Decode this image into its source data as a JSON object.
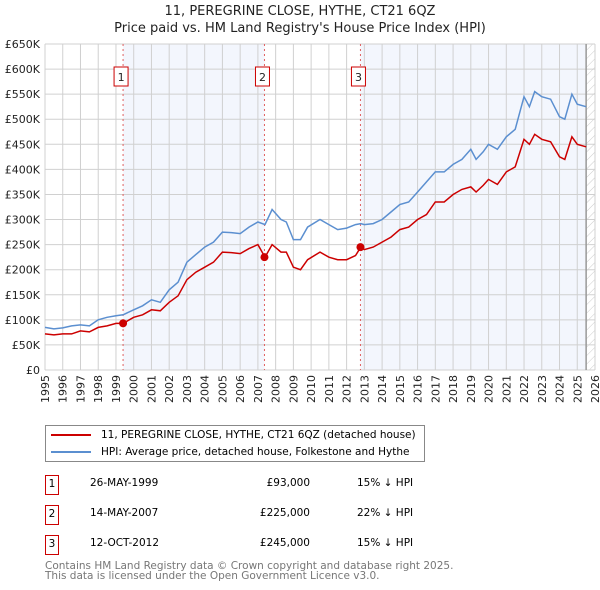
{
  "chart_data": {
    "type": "line",
    "title": "11, PEREGRINE CLOSE, HYTHE, CT21 6QZ",
    "subtitle": "Price paid vs. HM Land Registry's House Price Index (HPI)",
    "xlim": [
      1995,
      2026
    ],
    "ylim": [
      0,
      650000
    ],
    "grid": true,
    "y_ticks": [
      "£0",
      "£50K",
      "£100K",
      "£150K",
      "£200K",
      "£250K",
      "£300K",
      "£350K",
      "£400K",
      "£450K",
      "£500K",
      "£550K",
      "£600K",
      "£650K"
    ],
    "x_ticks": [
      "1995",
      "1996",
      "1997",
      "1998",
      "1999",
      "2000",
      "2001",
      "2002",
      "2003",
      "2004",
      "2005",
      "2006",
      "2007",
      "2008",
      "2009",
      "2010",
      "2011",
      "2012",
      "2013",
      "2014",
      "2015",
      "2016",
      "2017",
      "2018",
      "2019",
      "2020",
      "2021",
      "2022",
      "2023",
      "2024",
      "2025",
      "2026"
    ],
    "series": [
      {
        "name": "11, PEREGRINE CLOSE, HYTHE, CT21 6QZ (detached house)",
        "color": "#cc0000",
        "x": [
          1995,
          1995.5,
          1996,
          1996.5,
          1997,
          1997.5,
          1998,
          1998.5,
          1999,
          1999.4,
          2000,
          2000.5,
          2001,
          2001.5,
          2002,
          2002.5,
          2003,
          2003.5,
          2004,
          2004.5,
          2005,
          2005.5,
          2006,
          2006.5,
          2007,
          2007.4,
          2007.8,
          2008.3,
          2008.6,
          2009,
          2009.4,
          2009.8,
          2010.5,
          2011,
          2011.5,
          2012,
          2012.5,
          2012.8,
          2013,
          2013.5,
          2014,
          2014.5,
          2015,
          2015.5,
          2016,
          2016.5,
          2017,
          2017.5,
          2018,
          2018.5,
          2019,
          2019.3,
          2019.7,
          2020,
          2020.5,
          2021,
          2021.5,
          2022,
          2022.3,
          2022.6,
          2023,
          2023.5,
          2024,
          2024.3,
          2024.7,
          2025,
          2025.5
        ],
        "y": [
          72000,
          70000,
          72000,
          72000,
          78000,
          76000,
          85000,
          88000,
          93000,
          93000,
          105000,
          110000,
          120000,
          118000,
          135000,
          148000,
          180000,
          195000,
          205000,
          215000,
          235000,
          234000,
          232000,
          242000,
          250000,
          225000,
          250000,
          235000,
          235000,
          205000,
          200000,
          220000,
          235000,
          225000,
          220000,
          220000,
          228000,
          245000,
          240000,
          245000,
          255000,
          265000,
          280000,
          285000,
          300000,
          310000,
          335000,
          335000,
          350000,
          360000,
          365000,
          355000,
          368000,
          380000,
          370000,
          395000,
          405000,
          460000,
          450000,
          470000,
          460000,
          455000,
          425000,
          420000,
          465000,
          450000,
          445000
        ]
      },
      {
        "name": "HPI: Average price, detached house, Folkestone and Hythe",
        "color": "#5b8fd0",
        "x": [
          1995,
          1995.5,
          1996,
          1996.5,
          1997,
          1997.5,
          1998,
          1998.5,
          1999,
          1999.4,
          2000,
          2000.5,
          2001,
          2001.5,
          2002,
          2002.5,
          2003,
          2003.5,
          2004,
          2004.5,
          2005,
          2005.5,
          2006,
          2006.5,
          2007,
          2007.4,
          2007.8,
          2008.3,
          2008.6,
          2009,
          2009.4,
          2009.8,
          2010.5,
          2011,
          2011.5,
          2012,
          2012.5,
          2012.8,
          2013,
          2013.5,
          2014,
          2014.5,
          2015,
          2015.5,
          2016,
          2016.5,
          2017,
          2017.5,
          2018,
          2018.5,
          2019,
          2019.3,
          2019.7,
          2020,
          2020.5,
          2021,
          2021.5,
          2022,
          2022.3,
          2022.6,
          2023,
          2023.5,
          2024,
          2024.3,
          2024.7,
          2025,
          2025.5
        ],
        "y": [
          85000,
          82000,
          84000,
          88000,
          90000,
          88000,
          100000,
          105000,
          108000,
          110000,
          120000,
          128000,
          140000,
          135000,
          160000,
          175000,
          215000,
          230000,
          245000,
          255000,
          275000,
          274000,
          272000,
          285000,
          295000,
          290000,
          320000,
          300000,
          295000,
          260000,
          260000,
          285000,
          300000,
          290000,
          280000,
          283000,
          290000,
          292000,
          290000,
          292000,
          300000,
          315000,
          330000,
          335000,
          355000,
          375000,
          395000,
          395000,
          410000,
          420000,
          440000,
          420000,
          435000,
          450000,
          440000,
          465000,
          480000,
          545000,
          525000,
          555000,
          545000,
          540000,
          505000,
          500000,
          550000,
          530000,
          525000
        ]
      }
    ],
    "sales": [
      {
        "label": "1",
        "x": 1999.4,
        "y": 93000,
        "date": "26-MAY-1999",
        "price": "£93,000",
        "hpi": "15% ↓ HPI"
      },
      {
        "label": "2",
        "x": 2007.37,
        "y": 225000,
        "date": "14-MAY-2007",
        "price": "£225,000",
        "hpi": "22% ↓ HPI"
      },
      {
        "label": "3",
        "x": 2012.78,
        "y": 245000,
        "date": "12-OCT-2012",
        "price": "£245,000",
        "hpi": "15% ↓ HPI"
      }
    ],
    "shaded_ranges": [
      [
        1999.4,
        2007.37
      ],
      [
        2012.78,
        2025.5
      ]
    ],
    "forecast_from": 2025.5,
    "legend_placement": "bottom"
  },
  "footer": {
    "line1": "Contains HM Land Registry data © Crown copyright and database right 2025.",
    "line2": "This data is licensed under the Open Government Licence v3.0."
  }
}
